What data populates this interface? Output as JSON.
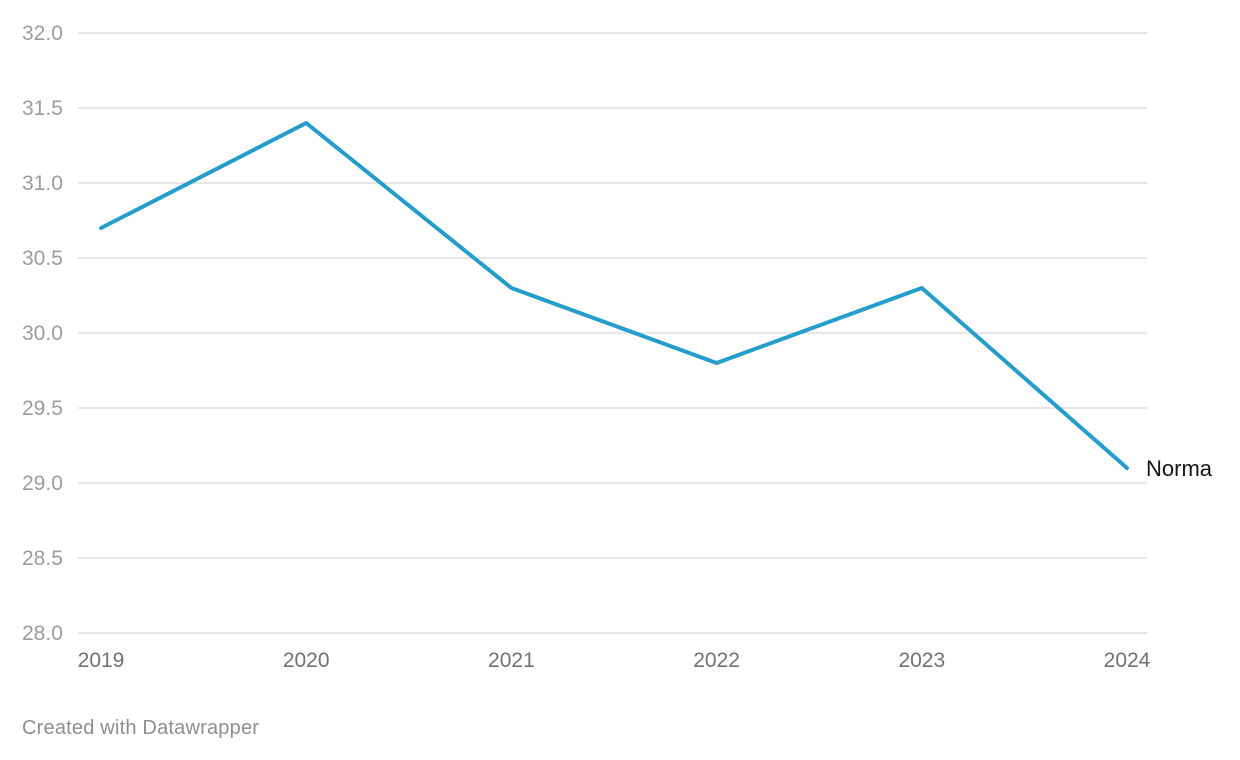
{
  "chart_data": {
    "type": "line",
    "categories": [
      "2019",
      "2020",
      "2021",
      "2022",
      "2023",
      "2024"
    ],
    "series": [
      {
        "name": "Norma",
        "values": [
          30.7,
          31.4,
          30.3,
          29.8,
          30.3,
          29.1
        ]
      }
    ],
    "title": "",
    "xlabel": "",
    "ylabel": "",
    "ylim": [
      28.0,
      32.0
    ],
    "ytick_labels": [
      "32.0",
      "31.5",
      "31.0",
      "30.5",
      "30.0",
      "29.5",
      "29.0",
      "28.5",
      "28.0"
    ],
    "ytick_values": [
      32.0,
      31.5,
      31.0,
      30.5,
      30.0,
      29.5,
      29.0,
      28.5,
      28.0
    ],
    "grid": "horizontal",
    "legend_position": "line-end-label",
    "colors": {
      "line": "#239ecd",
      "gridline": "#e6e6e6",
      "ytick_label": "#9d9d9d",
      "xtick_label": "#737373",
      "series_label": "#161616",
      "credit": "#8f8f8f",
      "background": "#ffffff"
    }
  },
  "footer": {
    "credit": "Created with Datawrapper"
  }
}
